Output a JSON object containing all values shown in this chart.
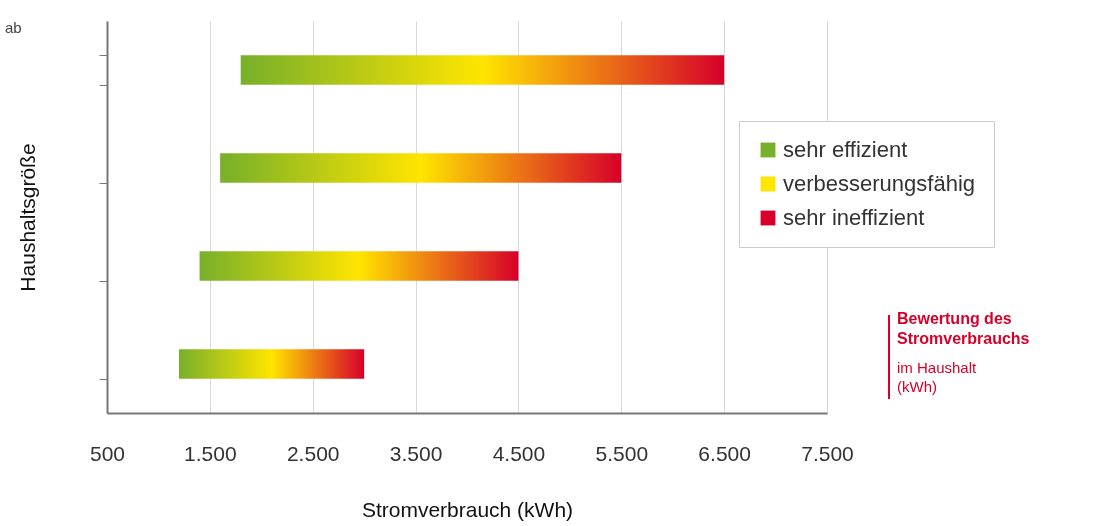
{
  "chart_data": {
    "type": "bar",
    "orientation": "horizontal",
    "xlabel": "Stromverbrauch (kWh)",
    "ylabel": "Haushaltsgröße",
    "categories": [
      null,
      null,
      null,
      null
    ],
    "base": [
      1800,
      1600,
      1400,
      1200
    ],
    "values": [
      4700,
      3900,
      3100,
      1800
    ],
    "series": [
      {
        "name": "sehr effizient",
        "color": "#77b02a",
        "values": [
          null,
          null,
          null,
          null
        ]
      },
      {
        "name": "verbesserungsfähig",
        "color": "#ffe500",
        "values": [
          null,
          null,
          null,
          null
        ]
      },
      {
        "name": "sehr ineffizient",
        "color": "#d6002a",
        "values": [
          null,
          null,
          null,
          null
        ]
      }
    ],
    "xlim": [
      500,
      7500
    ],
    "xticks": [
      500,
      {
        "value": 1500,
        "label": "1.500"
      },
      {
        "value": 2500,
        "label": "2.500"
      },
      {
        "value": 3500,
        "label": "3.500"
      },
      {
        "value": 4500,
        "label": "4.500"
      },
      {
        "value": 5500,
        "label": "5.500"
      },
      {
        "value": 6500,
        "label": "6.500"
      },
      {
        "value": 7500,
        "label": "7.500"
      }
    ],
    "grid": "x",
    "legend": "right",
    "annotations": [
      "ab",
      "Bewertung des\nStromverbrauchs",
      "im Haushalt\n(kWh)"
    ]
  }
}
